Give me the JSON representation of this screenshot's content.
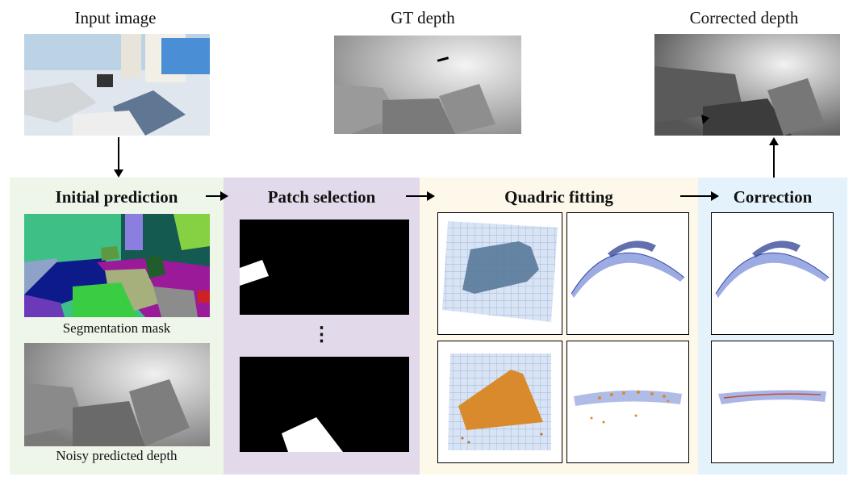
{
  "top": {
    "input_image": "Input image",
    "gt_depth": "GT depth",
    "corrected_depth": "Corrected depth"
  },
  "panels": {
    "initial": {
      "title": "Initial prediction",
      "seg_caption": "Segmentation mask",
      "depth_caption": "Noisy predicted depth",
      "color": "#eef5e9"
    },
    "patch": {
      "title": "Patch selection",
      "ellipsis": "⋮",
      "color": "#e2d9ea"
    },
    "quadric": {
      "title": "Quadric fitting",
      "color": "#fdf8ea"
    },
    "correction": {
      "title": "Correction",
      "color": "#e4f2fb"
    }
  },
  "colors": {
    "surface_blue": "#5566cc",
    "patch_orange": "#d98a2c",
    "grid_blue": "#b8cbe8"
  }
}
